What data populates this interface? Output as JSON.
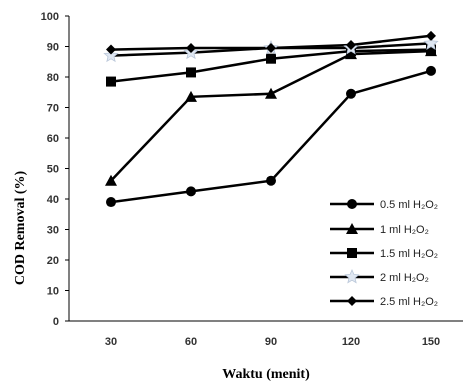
{
  "chart_data": {
    "type": "line",
    "title": "",
    "xlabel": "Waktu (menit)",
    "ylabel": "COD Removal (%)",
    "categories": [
      30,
      60,
      90,
      120,
      150
    ],
    "ylim": [
      0,
      100
    ],
    "yticks": [
      0,
      10,
      20,
      30,
      40,
      50,
      60,
      70,
      80,
      90,
      100
    ],
    "grid": false,
    "legend_position": "bottom-right",
    "series": [
      {
        "name": "0.5 ml H₂O₂",
        "marker": "circle",
        "color": "#000000",
        "values": [
          39,
          42.5,
          46,
          74.5,
          82
        ]
      },
      {
        "name": "1 ml H₂O₂",
        "marker": "triangle",
        "color": "#000000",
        "values": [
          46,
          73.5,
          74.5,
          87.5,
          88.5
        ]
      },
      {
        "name": "1.5 ml H₂O₂",
        "marker": "square",
        "color": "#000000",
        "values": [
          78.5,
          81.5,
          86,
          88.5,
          89
        ]
      },
      {
        "name": "2 ml H₂O₂",
        "marker": "star",
        "color": "#000000",
        "values": [
          87,
          88,
          89.5,
          89.5,
          91
        ]
      },
      {
        "name": "2.5 ml H₂O₂",
        "marker": "diamond",
        "color": "#000000",
        "values": [
          89,
          89.5,
          89.5,
          90.5,
          93.5
        ]
      }
    ]
  }
}
